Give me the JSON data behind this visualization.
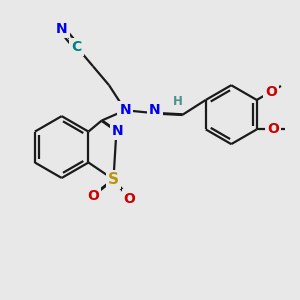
{
  "bg_color": "#e8e8e8",
  "bond_color": "#1a1a1a",
  "bond_width": 1.6,
  "dbo": 0.012,
  "atom_colors": {
    "N": "#0000ee",
    "S": "#b8960c",
    "O": "#cc0000",
    "C_cn": "#008080",
    "N_cn": "#0000ee",
    "H": "#4a9090"
  },
  "figsize": [
    3.0,
    3.0
  ],
  "dpi": 100
}
